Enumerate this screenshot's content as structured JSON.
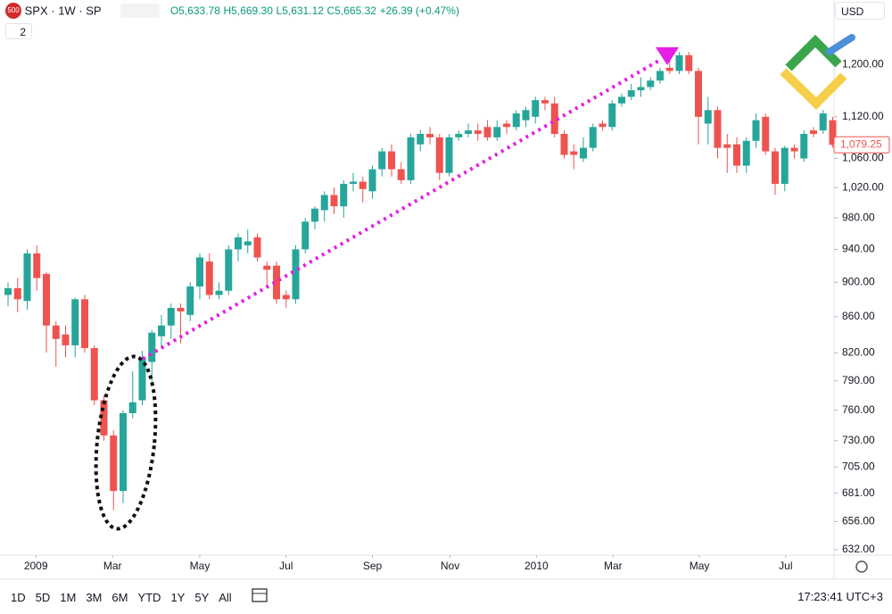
{
  "header": {
    "badge": "500",
    "symbol": "SPX · 1W · SP",
    "open": "O5,633.78",
    "high": "H5,669.30",
    "low": "L5,631.12",
    "close": "C5,665.32",
    "change": "+26.39 (+0.47%)",
    "currency": "USD",
    "indicators_count": "2"
  },
  "chart_data": {
    "type": "candlestick",
    "log_scale": true,
    "grid": false,
    "up_color": "#26a69a",
    "down_color": "#ef5350",
    "open": [
      885,
      893,
      878,
      935,
      910,
      850,
      840,
      828,
      880,
      825,
      770,
      735,
      683,
      757,
      770,
      810,
      838,
      850,
      870,
      862,
      895,
      925,
      885,
      890,
      940,
      945,
      955,
      920,
      920,
      885,
      880,
      940,
      975,
      990,
      1010,
      995,
      1025,
      1028,
      1015,
      1045,
      1070,
      1045,
      1030,
      1080,
      1095,
      1090,
      1040,
      1090,
      1095,
      1100,
      1105,
      1090,
      1110,
      1105,
      1115,
      1120,
      1145,
      1140,
      1095,
      1070,
      1060,
      1075,
      1110,
      1105,
      1140,
      1150,
      1160,
      1165,
      1175,
      1195,
      1190,
      1215,
      1190,
      1110,
      1130,
      1080,
      1080,
      1050,
      1085,
      1120,
      1070,
      1025,
      1075,
      1060,
      1100,
      1100,
      1115
    ],
    "high": [
      900,
      905,
      940,
      945,
      912,
      855,
      850,
      882,
      885,
      828,
      775,
      740,
      760,
      800,
      822,
      845,
      862,
      875,
      875,
      900,
      935,
      935,
      900,
      945,
      960,
      965,
      960,
      925,
      925,
      890,
      945,
      980,
      995,
      1015,
      1020,
      1030,
      1040,
      1035,
      1050,
      1075,
      1080,
      1055,
      1095,
      1101,
      1105,
      1095,
      1095,
      1100,
      1110,
      1110,
      1115,
      1115,
      1115,
      1130,
      1135,
      1150,
      1150,
      1150,
      1100,
      1080,
      1090,
      1110,
      1115,
      1145,
      1155,
      1170,
      1180,
      1180,
      1195,
      1210,
      1220,
      1220,
      1195,
      1150,
      1135,
      1095,
      1090,
      1090,
      1125,
      1125,
      1075,
      1078,
      1080,
      1100,
      1105,
      1130,
      1120
    ],
    "low": [
      872,
      865,
      868,
      890,
      820,
      805,
      815,
      815,
      820,
      765,
      730,
      666,
      672,
      752,
      765,
      785,
      825,
      835,
      830,
      855,
      880,
      880,
      880,
      885,
      925,
      935,
      925,
      895,
      875,
      870,
      875,
      935,
      965,
      975,
      985,
      980,
      1015,
      1000,
      1005,
      1035,
      1035,
      1025,
      1025,
      1070,
      1080,
      1030,
      1035,
      1085,
      1090,
      1085,
      1085,
      1085,
      1095,
      1100,
      1105,
      1110,
      1130,
      1090,
      1060,
      1045,
      1055,
      1070,
      1100,
      1100,
      1135,
      1145,
      1150,
      1160,
      1170,
      1185,
      1185,
      1185,
      1080,
      1080,
      1060,
      1040,
      1040,
      1040,
      1075,
      1065,
      1010,
      1015,
      1060,
      1055,
      1090,
      1095,
      1075
    ],
    "close": [
      893,
      880,
      935,
      905,
      850,
      835,
      828,
      880,
      825,
      770,
      735,
      683,
      757,
      768,
      815,
      842,
      850,
      870,
      866,
      895,
      930,
      885,
      890,
      940,
      955,
      950,
      930,
      915,
      880,
      880,
      940,
      975,
      992,
      1010,
      995,
      1025,
      1028,
      1018,
      1045,
      1070,
      1045,
      1030,
      1090,
      1095,
      1090,
      1040,
      1090,
      1095,
      1100,
      1095,
      1090,
      1105,
      1105,
      1125,
      1130,
      1145,
      1140,
      1095,
      1065,
      1065,
      1075,
      1105,
      1105,
      1140,
      1150,
      1160,
      1165,
      1175,
      1190,
      1190,
      1215,
      1190,
      1120,
      1130,
      1075,
      1075,
      1050,
      1085,
      1115,
      1070,
      1025,
      1075,
      1070,
      1095,
      1095,
      1125,
      1079.25
    ],
    "price_label": "1,079.25",
    "ylim": [
      627.5,
      1307
    ],
    "yticks": [
      {
        "value": 632,
        "label": "632.00"
      },
      {
        "value": 656,
        "label": "656.00"
      },
      {
        "value": 681,
        "label": "681.00"
      },
      {
        "value": 705,
        "label": "705.00"
      },
      {
        "value": 730,
        "label": "730.00"
      },
      {
        "value": 760,
        "label": "760.00"
      },
      {
        "value": 790,
        "label": "790.00"
      },
      {
        "value": 820,
        "label": "820.00"
      },
      {
        "value": 860,
        "label": "860.00"
      },
      {
        "value": 900,
        "label": "900.00"
      },
      {
        "value": 940,
        "label": "940.00"
      },
      {
        "value": 980,
        "label": "980.00"
      },
      {
        "value": 1020,
        "label": "1,020.00"
      },
      {
        "value": 1060,
        "label": "1,060.00"
      },
      {
        "value": 1120,
        "label": "1,120.00"
      },
      {
        "value": 1200,
        "label": "1,200.00"
      }
    ],
    "xticks": [
      {
        "value": 2.9,
        "label": "2009"
      },
      {
        "value": 10.9,
        "label": "Mar"
      },
      {
        "value": 20,
        "label": "May"
      },
      {
        "value": 29,
        "label": "Jul"
      },
      {
        "value": 38,
        "label": "Sep"
      },
      {
        "value": 46.1,
        "label": "Nov"
      },
      {
        "value": 55.1,
        "label": "2010"
      },
      {
        "value": 63.1,
        "label": "Mar"
      },
      {
        "value": 72.1,
        "label": "May"
      },
      {
        "value": 81.1,
        "label": "Jul"
      }
    ]
  },
  "footer": {
    "timeframes": [
      "1D",
      "5D",
      "1M",
      "3M",
      "6M",
      "YTD",
      "1Y",
      "5Y",
      "All"
    ],
    "clock": "17:23:41 UTC+3"
  }
}
